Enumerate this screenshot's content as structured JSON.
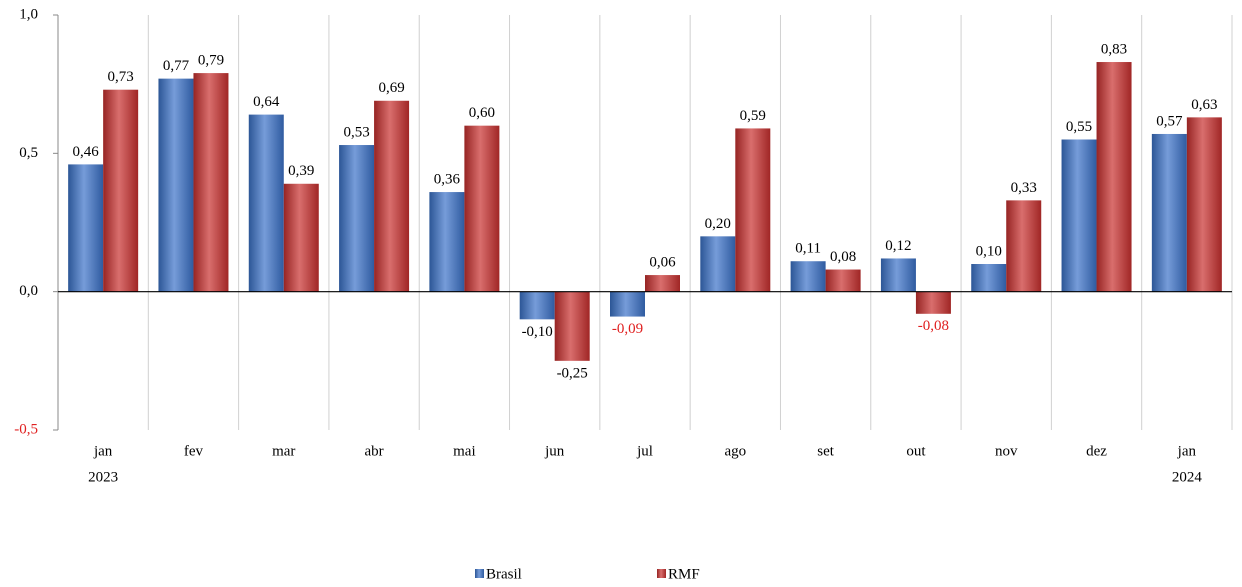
{
  "chart_data": {
    "type": "bar",
    "categories": [
      [
        "jan",
        "2023"
      ],
      [
        "fev"
      ],
      [
        "mar"
      ],
      [
        "abr"
      ],
      [
        "mai"
      ],
      [
        "jun"
      ],
      [
        "jul"
      ],
      [
        "ago"
      ],
      [
        "set"
      ],
      [
        "out"
      ],
      [
        "nov"
      ],
      [
        "dez"
      ],
      [
        "jan",
        "2024"
      ]
    ],
    "series": [
      {
        "name": "Brasil",
        "color": "#3b72c8",
        "values": [
          0.46,
          0.77,
          0.64,
          0.53,
          0.36,
          -0.1,
          -0.09,
          0.2,
          0.11,
          0.12,
          0.1,
          0.55,
          0.57
        ],
        "value_labels": [
          "0,46",
          "0,77",
          "0,64",
          "0,53",
          "0,36",
          "-0,10",
          "-0,09",
          "0,20",
          "0,11",
          "0,12",
          "0,10",
          "0,55",
          "0,57"
        ],
        "value_label_colors": [
          "#000",
          "#000",
          "#000",
          "#000",
          "#000",
          "#000",
          "#e02020",
          "#000",
          "#000",
          "#000",
          "#000",
          "#000",
          "#000"
        ]
      },
      {
        "name": "RMF",
        "color": "#c8302e",
        "values": [
          0.73,
          0.79,
          0.39,
          0.69,
          0.6,
          -0.25,
          0.06,
          0.59,
          0.08,
          -0.08,
          0.33,
          0.83,
          0.63
        ],
        "value_labels": [
          "0,73",
          "0,79",
          "0,39",
          "0,69",
          "0,60",
          "-0,25",
          "0,06",
          "0,59",
          "0,08",
          "-0,08",
          "0,33",
          "0,83",
          "0,63"
        ],
        "value_label_colors": [
          "#000",
          "#000",
          "#000",
          "#000",
          "#000",
          "#000",
          "#000",
          "#000",
          "#000",
          "#e02020",
          "#000",
          "#000",
          "#000"
        ]
      }
    ],
    "ylim": [
      -0.5,
      1.0
    ],
    "yticks": [
      {
        "value": -0.5,
        "label": "-0,5"
      },
      {
        "value": 0,
        "label": "0,0"
      },
      {
        "value": 0.5,
        "label": "0,5"
      },
      {
        "value": 1.0,
        "label": "1,0"
      }
    ],
    "ytick_label_colors": [
      "#e02020",
      "#000",
      "#000",
      "#000"
    ],
    "grid": "category-separators",
    "legend": "bottom"
  }
}
